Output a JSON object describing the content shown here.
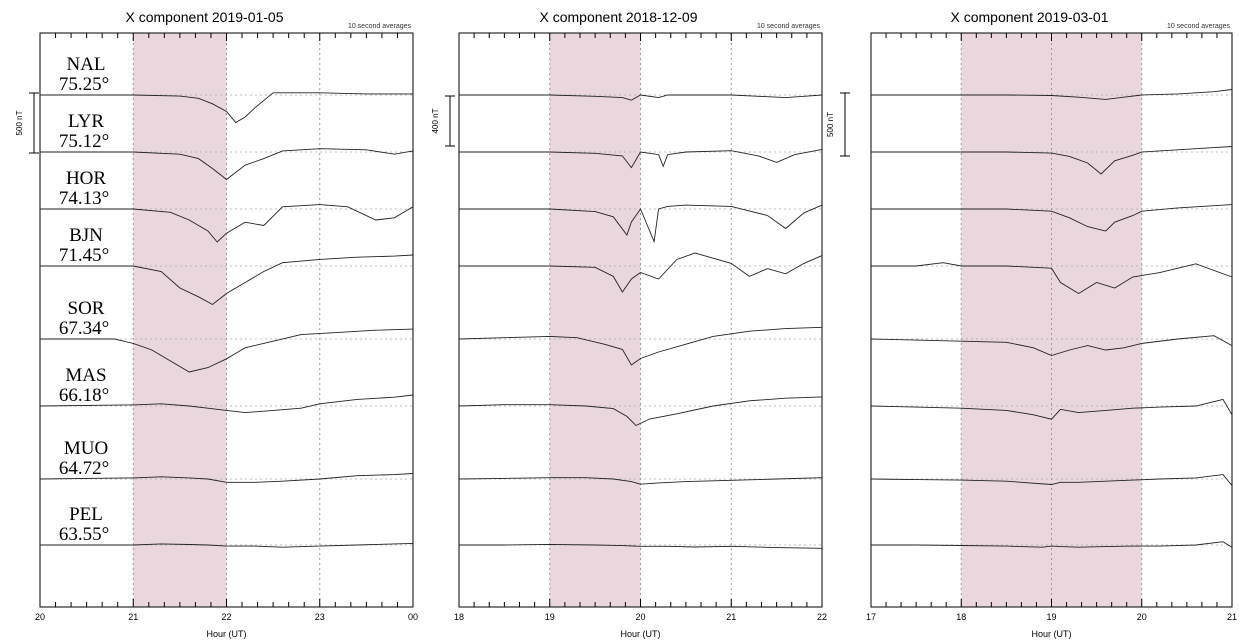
{
  "chart_data": [
    {
      "type": "line",
      "title": "X component 2019-01-05",
      "note": "10 second averages",
      "xlabel": "Hour (UT)",
      "x_ticks": [
        "20",
        "21",
        "22",
        "23",
        "00"
      ],
      "x_range_hours": [
        20,
        24
      ],
      "highlight_hours": [
        21,
        22
      ],
      "scale_bar": "500 nT",
      "stations": [
        {
          "code": "NAL",
          "lat": "75.25°"
        },
        {
          "code": "LYR",
          "lat": "75.12°"
        },
        {
          "code": "HOR",
          "lat": "74.13°"
        },
        {
          "code": "BJN",
          "lat": "71.45°"
        },
        {
          "code": "SOR",
          "lat": "67.34°"
        },
        {
          "code": "MAS",
          "lat": "66.18°"
        },
        {
          "code": "MUO",
          "lat": "64.72°"
        },
        {
          "code": "PEL",
          "lat": "63.55°"
        }
      ],
      "series_nT": [
        {
          "x": [
            20,
            21,
            21.5,
            21.7,
            21.85,
            22.0,
            22.1,
            22.2,
            22.3,
            22.5,
            23,
            23.5,
            24
          ],
          "y": [
            0,
            0,
            -10,
            -30,
            -80,
            -150,
            -250,
            -200,
            -120,
            20,
            20,
            10,
            10
          ]
        },
        {
          "x": [
            20,
            21,
            21.5,
            21.7,
            21.85,
            22.0,
            22.2,
            22.4,
            22.6,
            23,
            23.5,
            23.8,
            24
          ],
          "y": [
            0,
            0,
            -20,
            -60,
            -150,
            -250,
            -120,
            -60,
            10,
            30,
            20,
            -20,
            10
          ]
        },
        {
          "x": [
            20,
            21,
            21.4,
            21.6,
            21.8,
            21.9,
            22.0,
            22.2,
            22.4,
            22.6,
            23,
            23.3,
            23.6,
            23.8,
            24
          ],
          "y": [
            0,
            0,
            -30,
            -100,
            -200,
            -300,
            -220,
            -120,
            -150,
            20,
            40,
            20,
            -100,
            -80,
            20
          ]
        },
        {
          "x": [
            20,
            21,
            21.3,
            21.5,
            21.7,
            21.85,
            22.0,
            22.2,
            22.4,
            22.6,
            23,
            23.4,
            23.8,
            24
          ],
          "y": [
            0,
            0,
            -50,
            -200,
            -280,
            -350,
            -250,
            -150,
            -50,
            30,
            60,
            80,
            90,
            100
          ]
        },
        {
          "x": [
            20,
            20.8,
            21,
            21.2,
            21.4,
            21.6,
            21.8,
            22.0,
            22.2,
            22.5,
            22.8,
            23.2,
            23.6,
            24
          ],
          "y": [
            0,
            0,
            -40,
            -100,
            -200,
            -300,
            -260,
            -180,
            -80,
            -20,
            40,
            60,
            80,
            90
          ]
        },
        {
          "x": [
            20,
            21,
            21.3,
            21.6,
            21.8,
            22.0,
            22.2,
            22.5,
            22.8,
            23,
            23.4,
            23.8,
            24
          ],
          "y": [
            0,
            10,
            20,
            0,
            -20,
            -40,
            -60,
            -40,
            -20,
            20,
            60,
            80,
            100
          ]
        },
        {
          "x": [
            20,
            21,
            21.3,
            21.6,
            21.8,
            22.0,
            22.3,
            22.6,
            23,
            23.4,
            23.8,
            24
          ],
          "y": [
            0,
            10,
            20,
            10,
            0,
            -30,
            -30,
            -20,
            0,
            30,
            40,
            50
          ]
        },
        {
          "x": [
            20,
            21,
            21.3,
            21.6,
            21.8,
            22.0,
            22.3,
            22.6,
            23,
            23.4,
            23.8,
            24
          ],
          "y": [
            0,
            0,
            10,
            5,
            0,
            -10,
            -10,
            -20,
            -10,
            0,
            10,
            15
          ]
        }
      ]
    },
    {
      "type": "line",
      "title": "X component 2018-12-09",
      "note": "10 second averages",
      "xlabel": "Hour (UT)",
      "x_ticks": [
        "18",
        "19",
        "20",
        "21",
        "22"
      ],
      "x_range_hours": [
        18,
        22
      ],
      "highlight_hours": [
        19,
        20
      ],
      "scale_bar": "400 nT",
      "series_nT": [
        {
          "x": [
            18,
            19,
            19.5,
            19.8,
            19.9,
            20.0,
            20.2,
            20.3,
            20.5,
            21,
            21.3,
            21.6,
            21.8,
            22
          ],
          "y": [
            0,
            0,
            -10,
            -20,
            -40,
            0,
            -20,
            0,
            0,
            0,
            -10,
            -20,
            -10,
            0
          ]
        },
        {
          "x": [
            18,
            19,
            19.5,
            19.8,
            19.9,
            20.0,
            20.2,
            20.25,
            20.3,
            20.5,
            21,
            21.3,
            21.5,
            21.7,
            22
          ],
          "y": [
            0,
            0,
            -10,
            -30,
            -120,
            0,
            -20,
            -110,
            -20,
            0,
            10,
            -30,
            -80,
            -20,
            20
          ]
        },
        {
          "x": [
            18,
            19,
            19.5,
            19.7,
            19.85,
            19.9,
            20.0,
            20.15,
            20.2,
            20.3,
            20.5,
            21,
            21.4,
            21.6,
            21.8,
            22
          ],
          "y": [
            0,
            0,
            -20,
            -60,
            -200,
            -100,
            0,
            -250,
            0,
            20,
            30,
            20,
            -50,
            -150,
            -30,
            30
          ]
        },
        {
          "x": [
            18,
            19,
            19.5,
            19.7,
            19.8,
            19.9,
            20.0,
            20.2,
            20.4,
            20.6,
            21,
            21.2,
            21.4,
            21.6,
            21.8,
            22
          ],
          "y": [
            0,
            0,
            -10,
            -80,
            -200,
            -100,
            -50,
            -100,
            50,
            100,
            20,
            -80,
            -20,
            -60,
            20,
            80
          ]
        },
        {
          "x": [
            18,
            18.5,
            19,
            19.3,
            19.6,
            19.8,
            19.9,
            20.0,
            20.2,
            20.5,
            20.8,
            21.2,
            21.6,
            22
          ],
          "y": [
            0,
            10,
            20,
            10,
            -40,
            -80,
            -200,
            -150,
            -100,
            -40,
            20,
            60,
            80,
            90
          ]
        },
        {
          "x": [
            18,
            18.5,
            19,
            19.4,
            19.7,
            19.85,
            19.95,
            20.1,
            20.4,
            20.8,
            21.2,
            21.6,
            22
          ],
          "y": [
            0,
            10,
            10,
            0,
            -20,
            -80,
            -150,
            -100,
            -60,
            0,
            40,
            60,
            70
          ]
        },
        {
          "x": [
            18,
            18.5,
            19,
            19.4,
            19.7,
            19.9,
            20.0,
            20.2,
            20.5,
            21,
            21.5,
            22
          ],
          "y": [
            0,
            5,
            10,
            10,
            0,
            -20,
            -40,
            -30,
            -20,
            -10,
            0,
            10
          ]
        },
        {
          "x": [
            18,
            18.5,
            19,
            19.5,
            19.8,
            20.0,
            20.3,
            20.6,
            21,
            21.5,
            22
          ],
          "y": [
            0,
            0,
            5,
            0,
            -5,
            -10,
            -10,
            -15,
            -10,
            -20,
            -25
          ]
        }
      ]
    },
    {
      "type": "line",
      "title": "X component 2019-03-01",
      "note": "10 second averages",
      "xlabel": "Hour (UT)",
      "x_ticks": [
        "17",
        "18",
        "19",
        "20",
        "21"
      ],
      "x_range_hours": [
        17,
        21
      ],
      "highlight_hours": [
        18,
        20
      ],
      "scale_bar": "500 nT",
      "series_nT": [
        {
          "x": [
            17,
            18,
            18.5,
            19,
            19.3,
            19.6,
            19.8,
            20,
            20.4,
            20.8,
            21
          ],
          "y": [
            0,
            0,
            0,
            -5,
            -20,
            -40,
            -20,
            0,
            10,
            30,
            50
          ]
        },
        {
          "x": [
            17,
            18,
            18.5,
            19,
            19.2,
            19.4,
            19.55,
            19.7,
            19.9,
            20,
            20.4,
            20.8,
            21
          ],
          "y": [
            0,
            0,
            0,
            -10,
            -40,
            -100,
            -200,
            -80,
            -30,
            0,
            20,
            40,
            50
          ]
        },
        {
          "x": [
            17,
            18,
            18.5,
            19,
            19.2,
            19.4,
            19.6,
            19.7,
            19.9,
            20,
            20.4,
            20.8,
            21
          ],
          "y": [
            0,
            0,
            0,
            -20,
            -80,
            -160,
            -200,
            -120,
            -60,
            -20,
            10,
            30,
            40
          ]
        },
        {
          "x": [
            17,
            17.5,
            17.8,
            18,
            18.5,
            19,
            19.1,
            19.3,
            19.5,
            19.7,
            19.9,
            20.2,
            20.6,
            21
          ],
          "y": [
            0,
            0,
            30,
            0,
            0,
            -20,
            -150,
            -250,
            -150,
            -200,
            -100,
            -60,
            20,
            -100
          ]
        },
        {
          "x": [
            17,
            17.5,
            18,
            18.5,
            18.8,
            19,
            19.2,
            19.4,
            19.6,
            19.8,
            20,
            20.4,
            20.8,
            21
          ],
          "y": [
            0,
            -10,
            -20,
            -30,
            -80,
            -150,
            -100,
            -60,
            -100,
            -80,
            -40,
            0,
            30,
            -60
          ]
        },
        {
          "x": [
            17,
            17.5,
            18,
            18.5,
            18.8,
            19,
            19.1,
            19.3,
            19.6,
            19.9,
            20.2,
            20.6,
            20.9,
            21
          ],
          "y": [
            0,
            -10,
            -20,
            -40,
            -80,
            -120,
            -30,
            -60,
            -40,
            -20,
            -10,
            0,
            60,
            -80
          ]
        },
        {
          "x": [
            17,
            17.5,
            18,
            18.5,
            19,
            19.1,
            19.3,
            19.6,
            19.9,
            20.2,
            20.6,
            20.9,
            21
          ],
          "y": [
            0,
            -5,
            -10,
            -20,
            -50,
            -30,
            -30,
            -20,
            -10,
            0,
            10,
            40,
            -60
          ]
        },
        {
          "x": [
            17,
            17.5,
            18,
            18.5,
            18.9,
            19,
            19.1,
            19.3,
            19.6,
            19.9,
            20.2,
            20.6,
            20.9,
            21
          ],
          "y": [
            0,
            0,
            -5,
            -10,
            -20,
            -10,
            -15,
            -20,
            -15,
            -10,
            -10,
            0,
            30,
            -20
          ]
        }
      ]
    }
  ]
}
